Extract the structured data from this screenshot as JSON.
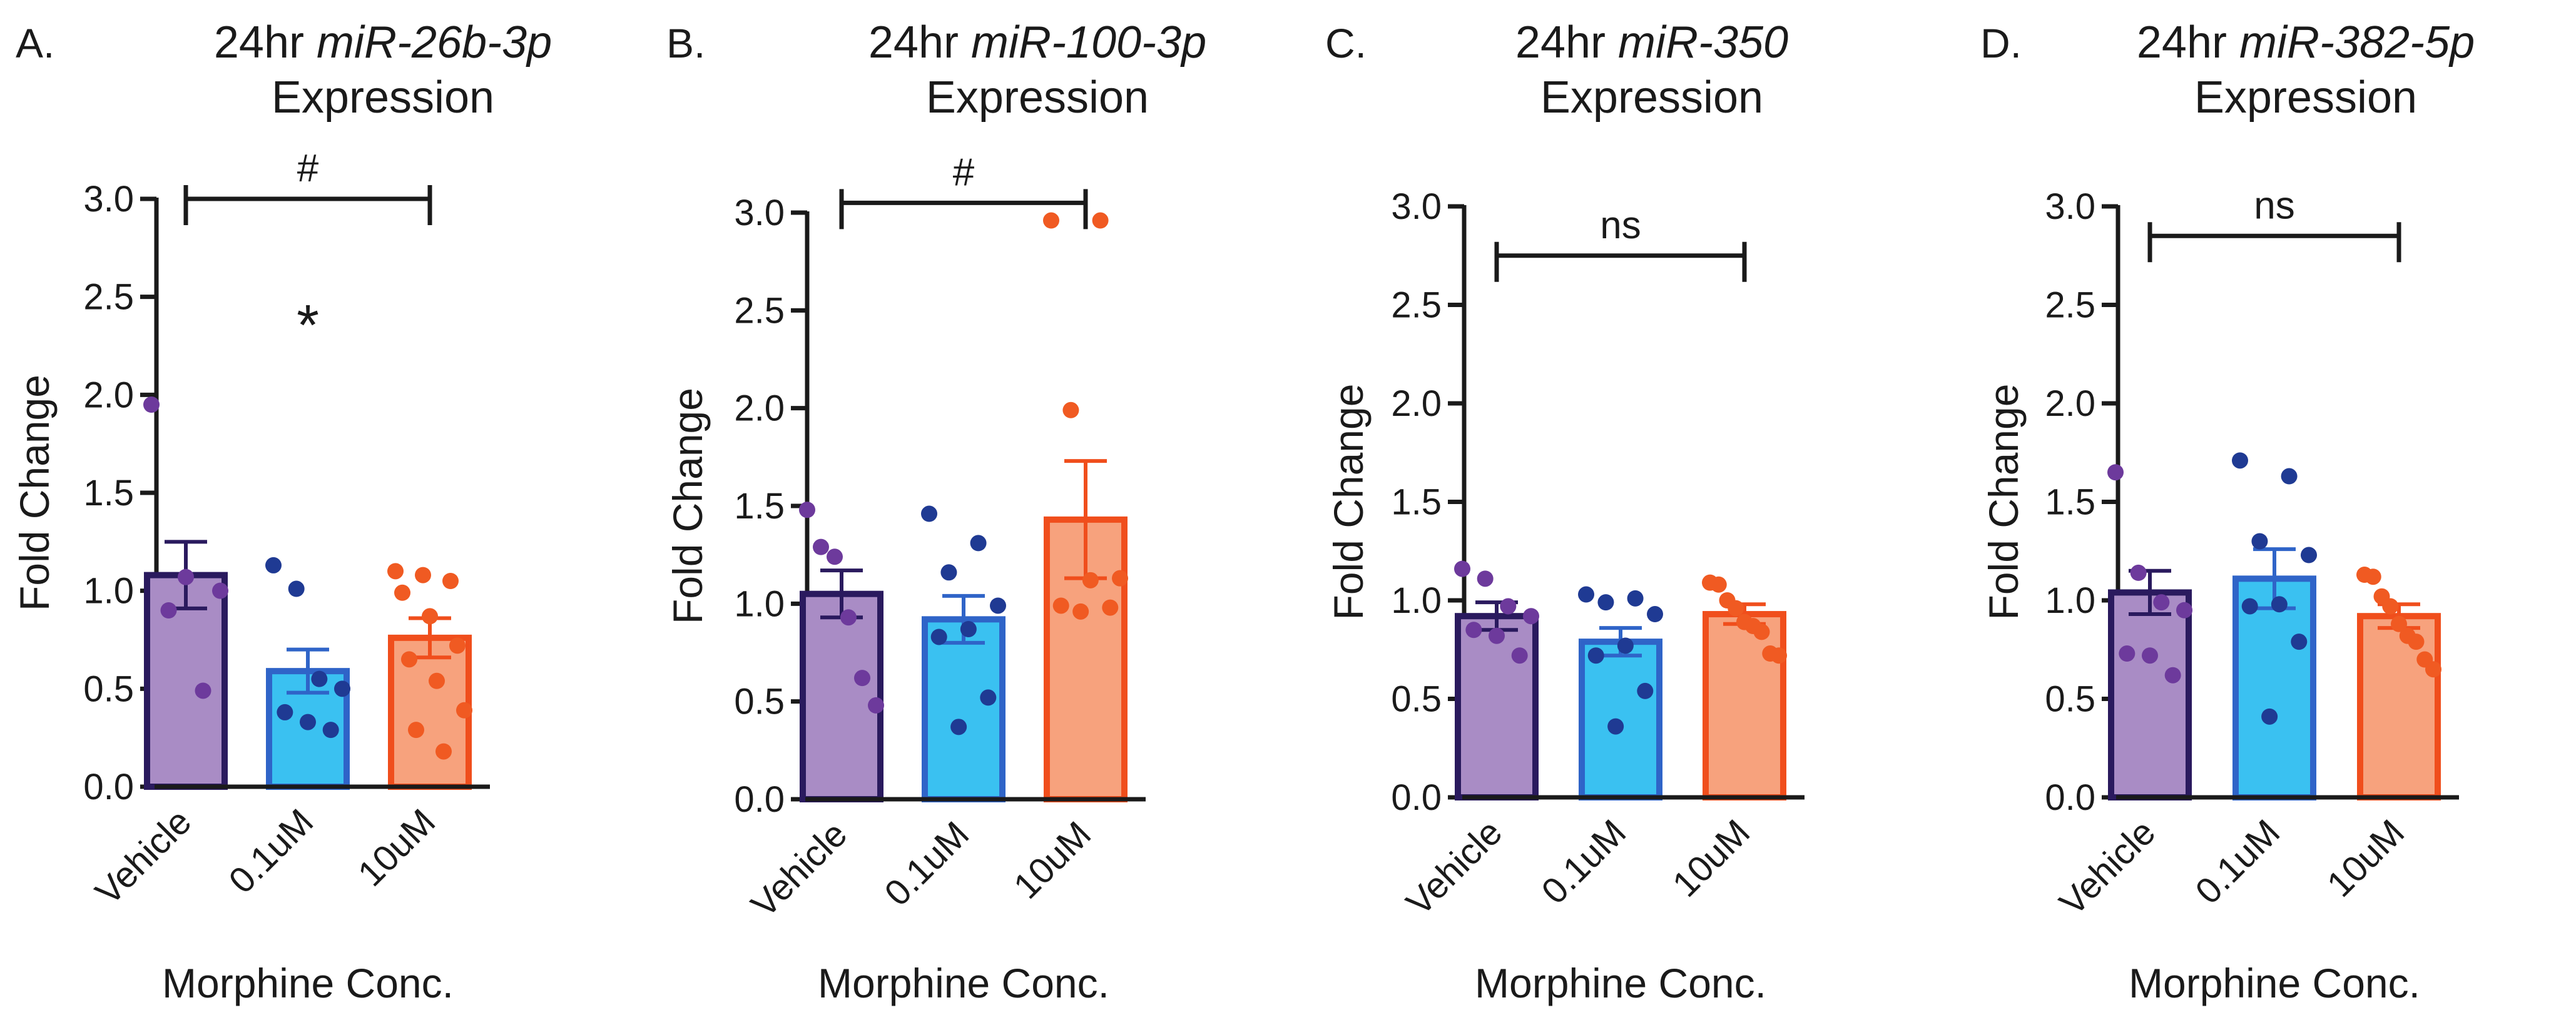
{
  "chart_data": [
    {
      "type": "bar",
      "panel_label": "A.",
      "title_prefix": "24hr ",
      "title_gene": "miR-26b-3p",
      "title_line2": "Expression",
      "ylabel": "Fold Change",
      "xlabel": "Morphine Conc.",
      "ylim": [
        0,
        3.0
      ],
      "yticks": [
        "0.0",
        "0.5",
        "1.0",
        "1.5",
        "2.0",
        "2.5",
        "3.0"
      ],
      "categories": [
        "Vehicle",
        "0.1uM",
        "10uM"
      ],
      "values": [
        1.08,
        0.59,
        0.76
      ],
      "sem": [
        0.17,
        0.11,
        0.1
      ],
      "points": [
        [
          1.95,
          1.07,
          1.0,
          0.9,
          0.49
        ],
        [
          1.13,
          1.01,
          0.55,
          0.5,
          0.38,
          0.33,
          0.29
        ],
        [
          1.1,
          1.08,
          1.05,
          0.99,
          0.87,
          0.72,
          0.65,
          0.54,
          0.39,
          0.29,
          0.18
        ]
      ],
      "bracket_label": "#",
      "bracket_value": 3.0,
      "star_label": "*",
      "star_value": 2.35
    },
    {
      "type": "bar",
      "panel_label": "B.",
      "title_prefix": "24hr ",
      "title_gene": "miR-100-3p",
      "title_line2": "Expression",
      "ylabel": "Fold Change",
      "xlabel": "Morphine Conc.",
      "ylim": [
        0,
        3.0
      ],
      "yticks": [
        "0.0",
        "0.5",
        "1.0",
        "1.5",
        "2.0",
        "2.5",
        "3.0"
      ],
      "categories": [
        "Vehicle",
        "0.1uM",
        "10uM"
      ],
      "values": [
        1.05,
        0.92,
        1.43
      ],
      "sem": [
        0.12,
        0.12,
        0.3
      ],
      "points": [
        [
          1.48,
          1.29,
          1.24,
          0.93,
          0.62,
          0.48
        ],
        [
          1.46,
          1.31,
          1.16,
          0.99,
          0.87,
          0.83,
          0.52,
          0.37
        ],
        [
          2.96,
          2.96,
          1.99,
          1.13,
          1.12,
          0.99,
          0.98,
          0.96
        ]
      ],
      "bracket_label": "#",
      "bracket_value": 3.05
    },
    {
      "type": "bar",
      "panel_label": "C.",
      "title_prefix": "24hr ",
      "title_gene": "miR-350",
      "title_line2": "Expression",
      "ylabel": "Fold Change",
      "xlabel": "Morphine Conc.",
      "ylim": [
        0,
        3.0
      ],
      "yticks": [
        "0.0",
        "0.5",
        "1.0",
        "1.5",
        "2.0",
        "2.5",
        "3.0"
      ],
      "categories": [
        "Vehicle",
        "0.1uM",
        "10uM"
      ],
      "values": [
        0.92,
        0.79,
        0.93
      ],
      "sem": [
        0.07,
        0.07,
        0.05
      ],
      "points": [
        [
          1.16,
          1.11,
          0.97,
          0.92,
          0.85,
          0.82,
          0.72
        ],
        [
          1.03,
          1.01,
          0.99,
          0.93,
          0.77,
          0.72,
          0.54,
          0.36
        ],
        [
          1.09,
          1.08,
          1.0,
          0.96,
          0.89,
          0.87,
          0.84,
          0.73,
          0.72
        ]
      ],
      "bracket_label": "ns",
      "bracket_value": 2.75
    },
    {
      "type": "bar",
      "panel_label": "D.",
      "title_prefix": "24hr ",
      "title_gene": "miR-382-5p",
      "title_line2": "Expression",
      "ylabel": "Fold Change",
      "xlabel": "Morphine Conc.",
      "ylim": [
        0,
        3.0
      ],
      "yticks": [
        "0.0",
        "0.5",
        "1.0",
        "1.5",
        "2.0",
        "2.5",
        "3.0"
      ],
      "categories": [
        "Vehicle",
        "0.1uM",
        "10uM"
      ],
      "values": [
        1.04,
        1.11,
        0.92
      ],
      "sem": [
        0.11,
        0.15,
        0.06
      ],
      "points": [
        [
          1.65,
          1.14,
          0.99,
          0.95,
          0.73,
          0.72,
          0.62
        ],
        [
          1.71,
          1.63,
          1.3,
          1.23,
          0.98,
          0.97,
          0.79,
          0.41
        ],
        [
          1.13,
          1.12,
          1.02,
          0.97,
          0.88,
          0.82,
          0.79,
          0.7,
          0.65
        ]
      ],
      "bracket_label": "ns",
      "bracket_value": 2.85
    }
  ],
  "colors": {
    "axis": "#1a1a1a",
    "bar_fill": [
      "#a98cc5",
      "#3ac1f1",
      "#f7a27d"
    ],
    "bar_edge": [
      "#2a1a5e",
      "#2f64c8",
      "#f04e1c"
    ],
    "dots": [
      "#6d3a9c",
      "#1f3a93",
      "#f05a22"
    ]
  }
}
